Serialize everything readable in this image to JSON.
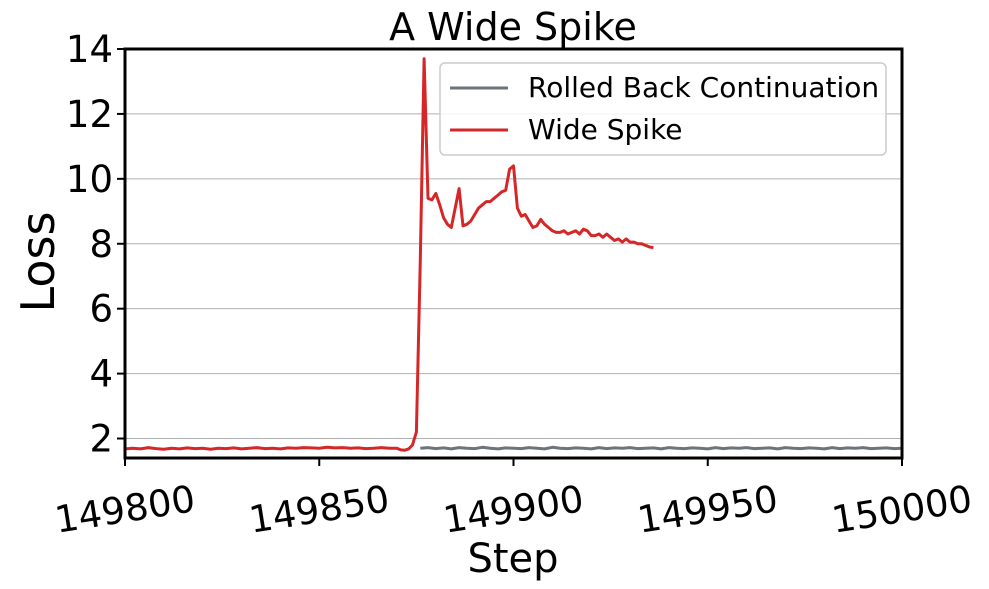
{
  "chart_data": {
    "type": "line",
    "title": "A Wide Spike",
    "xlabel": "Step",
    "ylabel": "Loss",
    "xlim": [
      149800,
      150000
    ],
    "ylim": [
      1.4,
      14
    ],
    "x_ticks": [
      "149800",
      "149850",
      "149900",
      "149950",
      "150000"
    ],
    "y_ticks": [
      "2",
      "4",
      "6",
      "8",
      "10",
      "12",
      "14"
    ],
    "grid": "horizontal",
    "legend_position": "top-right",
    "series": [
      {
        "name": "Rolled Back Continuation",
        "color": "#6c757d",
        "x": [
          149876,
          149878,
          149880,
          149882,
          149884,
          149886,
          149888,
          149890,
          149892,
          149894,
          149896,
          149898,
          149900,
          149902,
          149904,
          149906,
          149908,
          149910,
          149912,
          149914,
          149916,
          149918,
          149920,
          149922,
          149924,
          149926,
          149928,
          149930,
          149932,
          149934,
          149936,
          149938,
          149940,
          149942,
          149944,
          149946,
          149948,
          149950,
          149952,
          149954,
          149956,
          149958,
          149960,
          149962,
          149964,
          149966,
          149968,
          149970,
          149972,
          149974,
          149976,
          149978,
          149980,
          149982,
          149984,
          149986,
          149988,
          149990,
          149992,
          149994,
          149996,
          149998,
          150000
        ],
        "y": [
          1.7,
          1.72,
          1.69,
          1.71,
          1.68,
          1.72,
          1.7,
          1.69,
          1.73,
          1.7,
          1.68,
          1.71,
          1.7,
          1.69,
          1.72,
          1.7,
          1.68,
          1.73,
          1.7,
          1.69,
          1.71,
          1.7,
          1.68,
          1.72,
          1.69,
          1.71,
          1.7,
          1.72,
          1.69,
          1.7,
          1.71,
          1.68,
          1.72,
          1.7,
          1.69,
          1.71,
          1.7,
          1.68,
          1.72,
          1.69,
          1.71,
          1.7,
          1.72,
          1.69,
          1.7,
          1.71,
          1.68,
          1.72,
          1.7,
          1.69,
          1.71,
          1.7,
          1.68,
          1.72,
          1.69,
          1.71,
          1.7,
          1.72,
          1.69,
          1.7,
          1.71,
          1.69,
          1.7
        ]
      },
      {
        "name": "Wide Spike",
        "color": "#d62728",
        "x": [
          149800,
          149802,
          149804,
          149806,
          149808,
          149810,
          149812,
          149814,
          149816,
          149818,
          149820,
          149822,
          149824,
          149826,
          149828,
          149830,
          149832,
          149834,
          149836,
          149838,
          149840,
          149842,
          149844,
          149846,
          149848,
          149850,
          149852,
          149854,
          149856,
          149858,
          149860,
          149862,
          149864,
          149866,
          149868,
          149870,
          149871,
          149872,
          149873,
          149874,
          149875,
          149876,
          149877,
          149878,
          149879,
          149880,
          149881,
          149882,
          149883,
          149884,
          149885,
          149886,
          149887,
          149888,
          149889,
          149890,
          149891,
          149892,
          149893,
          149894,
          149895,
          149896,
          149897,
          149898,
          149899,
          149900,
          149901,
          149902,
          149903,
          149904,
          149905,
          149906,
          149907,
          149908,
          149909,
          149910,
          149911,
          149912,
          149913,
          149914,
          149915,
          149916,
          149917,
          149918,
          149919,
          149920,
          149921,
          149922,
          149923,
          149924,
          149925,
          149926,
          149927,
          149928,
          149929,
          149930,
          149931,
          149932,
          149933,
          149934,
          149935,
          149936
        ],
        "y": [
          1.68,
          1.7,
          1.68,
          1.72,
          1.69,
          1.67,
          1.7,
          1.68,
          1.71,
          1.69,
          1.7,
          1.67,
          1.7,
          1.69,
          1.71,
          1.68,
          1.7,
          1.72,
          1.69,
          1.7,
          1.68,
          1.71,
          1.7,
          1.72,
          1.71,
          1.7,
          1.73,
          1.71,
          1.72,
          1.7,
          1.71,
          1.69,
          1.7,
          1.72,
          1.7,
          1.7,
          1.65,
          1.64,
          1.68,
          1.8,
          2.2,
          7.5,
          13.7,
          9.4,
          9.35,
          9.55,
          9.2,
          8.8,
          8.6,
          8.5,
          9.1,
          9.7,
          8.55,
          8.6,
          8.7,
          8.9,
          9.1,
          9.2,
          9.3,
          9.3,
          9.4,
          9.5,
          9.6,
          9.65,
          10.3,
          10.4,
          9.1,
          8.85,
          8.9,
          8.7,
          8.5,
          8.55,
          8.75,
          8.6,
          8.5,
          8.4,
          8.35,
          8.35,
          8.4,
          8.3,
          8.35,
          8.4,
          8.3,
          8.45,
          8.4,
          8.25,
          8.25,
          8.3,
          8.2,
          8.3,
          8.2,
          8.1,
          8.15,
          8.05,
          8.15,
          8.05,
          8.05,
          8.0,
          8.0,
          7.95,
          7.9,
          7.88
        ]
      }
    ]
  }
}
